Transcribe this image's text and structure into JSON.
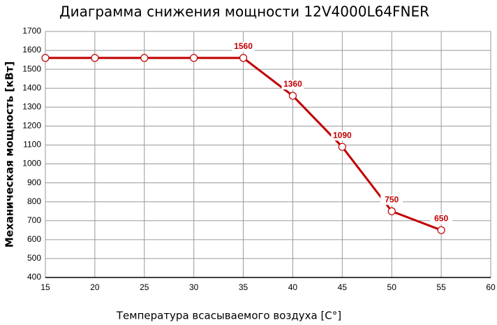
{
  "chart_data": {
    "type": "line",
    "title": "Диаграмма снижения мощности 12V4000L64FNER",
    "x_label": "Температура всасываемого воздуха [C°]",
    "y_label": "Механическая мощность [кВт]",
    "x": [
      15,
      20,
      25,
      30,
      35,
      40,
      45,
      50,
      55
    ],
    "series": [
      {
        "name": "12V4000L64FNER",
        "color": "#c00000",
        "values": [
          1560,
          1560,
          1560,
          1560,
          1560,
          1360,
          1090,
          750,
          650
        ],
        "value_labels": [
          null,
          null,
          null,
          null,
          "1560",
          "1360",
          "1090",
          "750",
          "650"
        ]
      }
    ],
    "xlim": [
      15,
      60
    ],
    "xticks": [
      15,
      20,
      25,
      30,
      35,
      40,
      45,
      50,
      55,
      60
    ],
    "ylim": [
      400,
      1700
    ],
    "yticks": [
      400,
      500,
      600,
      700,
      800,
      900,
      1000,
      1100,
      1200,
      1300,
      1400,
      1500,
      1600,
      1700
    ],
    "grid": true,
    "legend": false
  }
}
